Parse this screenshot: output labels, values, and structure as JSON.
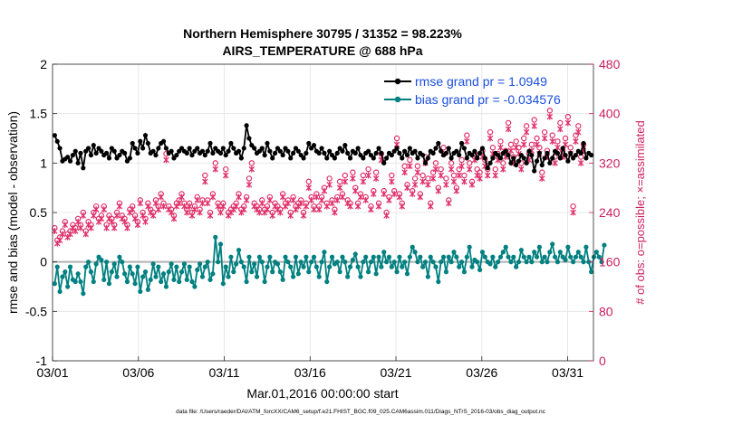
{
  "chart_data": {
    "type": "line",
    "title_line1": "Northern Hemisphere 30795 / 31352 = 98.223%",
    "title_line2": "AIRS_TEMPERATURE @ 688 hPa",
    "xlabel": "Mar.01,2016 00:00:00 start",
    "ylabel_left": "rmse and bias (model - observation)",
    "ylabel_right": "# of obs: o=possible; ×=assimilated",
    "footer": "data file: /Users/raeder/DAI/ATM_forcXX/CAM6_setup/f.e21.FHIST_BGC.f09_025.CAM6assim.011/Diags_NTrS_2016-03/obs_diag_output.nc",
    "xlim": [
      0,
      31.5
    ],
    "ylim_left": [
      -1,
      2
    ],
    "ylim_right": [
      0,
      480
    ],
    "x_ticks": [
      0,
      5,
      10,
      15,
      20,
      25,
      30
    ],
    "x_tick_labels": [
      "03/01",
      "03/06",
      "03/11",
      "03/16",
      "03/21",
      "03/26",
      "03/31"
    ],
    "y_ticks_left": [
      -1,
      -0.5,
      0,
      0.5,
      1,
      1.5,
      2
    ],
    "y_tick_labels_left": [
      "-1",
      "-0.5",
      "0",
      "0.5",
      "1",
      "1.5",
      "2"
    ],
    "y_ticks_right": [
      0,
      80,
      160,
      240,
      320,
      400,
      480
    ],
    "y_tick_labels_right": [
      "0",
      "80",
      "160",
      "240",
      "320",
      "400",
      "480"
    ],
    "legend": [
      {
        "label": "rmse grand pr = 1.0949",
        "color": "#000000"
      },
      {
        "label": "bias grand pr = -0.034576",
        "color": "#007f7f"
      }
    ],
    "colors": {
      "rmse": "#000000",
      "bias": "#008080",
      "obs": "#e0306a",
      "legend_text": "#1a4fe0",
      "right_axis": "#cc1f5e",
      "zero_line": "#b0b0b0"
    },
    "rmse": [
      1.28,
      1.22,
      1.15,
      1.02,
      1.04,
      1.06,
      1.02,
      1.08,
      1.12,
      1.0,
      1.1,
      0.95,
      1.12,
      1.15,
      1.08,
      1.18,
      1.1,
      1.15,
      1.12,
      1.08,
      1.1,
      1.05,
      1.15,
      1.12,
      1.05,
      1.08,
      1.12,
      1.1,
      1.02,
      1.05,
      1.2,
      1.15,
      1.1,
      1.22,
      1.15,
      1.28,
      1.2,
      1.1,
      1.12,
      1.08,
      1.15,
      1.2,
      1.22,
      1.15,
      1.1,
      1.12,
      1.05,
      1.08,
      1.12,
      1.15,
      1.12,
      1.1,
      1.15,
      1.08,
      1.12,
      1.15,
      1.1,
      1.12,
      1.08,
      1.12,
      1.2,
      1.1,
      1.15,
      1.12,
      1.1,
      1.15,
      1.08,
      1.12,
      1.2,
      1.15,
      1.1,
      1.12,
      1.05,
      1.15,
      1.38,
      1.25,
      1.18,
      1.15,
      1.1,
      1.12,
      1.15,
      1.08,
      1.2,
      1.12,
      1.05,
      1.1,
      1.15,
      1.12,
      1.08,
      1.15,
      1.12,
      1.05,
      1.1,
      1.15,
      1.12,
      1.08,
      1.05,
      1.1,
      1.2,
      1.15,
      1.18,
      1.12,
      1.1,
      1.15,
      1.1,
      1.05,
      1.12,
      1.08,
      1.05,
      1.1,
      1.15,
      1.12,
      1.18,
      1.1,
      1.05,
      1.12,
      1.1,
      1.15,
      1.08,
      1.05,
      1.1,
      1.12,
      1.08,
      1.05,
      1.1,
      1.15,
      1.1,
      1.0,
      1.05,
      1.1,
      1.08,
      1.12,
      1.15,
      1.1,
      1.05,
      1.12,
      1.08,
      1.15,
      1.1,
      1.12,
      1.05,
      1.1,
      1.08,
      1.0,
      1.05,
      1.12,
      1.1,
      1.15,
      1.2,
      1.12,
      1.08,
      1.1,
      1.15,
      1.05,
      1.1,
      1.12,
      1.08,
      1.2,
      1.15,
      1.05,
      1.1,
      1.08,
      1.12,
      1.05,
      1.1,
      1.15,
      1.05,
      0.95,
      1.0,
      1.05,
      1.1,
      1.08,
      1.05,
      1.1,
      1.12,
      1.08,
      1.0,
      1.05,
      0.98,
      1.02,
      1.08,
      1.05,
      1.0,
      1.12,
      1.08,
      0.92,
      1.02,
      1.1,
      0.98,
      1.05,
      1.1,
      1.0,
      1.05,
      1.12,
      1.1,
      1.05,
      1.15,
      1.08,
      1.02,
      1.1,
      1.05,
      1.08,
      1.12,
      1.1,
      1.2,
      1.05,
      1.1,
      1.08
    ],
    "bias": [
      -0.22,
      -0.05,
      -0.3,
      -0.15,
      -0.1,
      -0.25,
      -0.05,
      -0.18,
      -0.2,
      -0.12,
      -0.2,
      -0.32,
      -0.05,
      0.0,
      -0.1,
      -0.2,
      -0.02,
      0.05,
      0.02,
      -0.18,
      0.0,
      -0.22,
      -0.1,
      -0.02,
      -0.15,
      0.05,
      0.0,
      -0.12,
      -0.2,
      -0.05,
      -0.12,
      -0.22,
      -0.05,
      -0.3,
      -0.15,
      -0.1,
      -0.28,
      -0.18,
      -0.02,
      -0.15,
      -0.05,
      -0.2,
      -0.12,
      -0.25,
      -0.1,
      -0.02,
      -0.18,
      -0.05,
      -0.2,
      -0.1,
      -0.02,
      -0.18,
      -0.05,
      -0.2,
      -0.25,
      -0.08,
      -0.02,
      -0.15,
      -0.05,
      0.0,
      -0.18,
      -0.12,
      0.25,
      0.0,
      0.18,
      -0.22,
      -0.05,
      -0.15,
      0.05,
      -0.1,
      -0.02,
      0.12,
      0.0,
      -0.05,
      -0.2,
      0.05,
      -0.1,
      -0.02,
      -0.15,
      0.05,
      0.0,
      -0.2,
      -0.05,
      0.05,
      -0.1,
      0.0,
      -0.02,
      -0.1,
      -0.18,
      0.05,
      0.0,
      -0.05,
      -0.15,
      0.05,
      -0.12,
      0.0,
      -0.05,
      0.05,
      -0.1,
      0.0,
      0.05,
      -0.05,
      -0.15,
      0.0,
      0.1,
      -0.2,
      -0.05,
      0.05,
      -0.02,
      0.0,
      -0.1,
      0.05,
      0.0,
      -0.15,
      -0.05,
      0.02,
      0.08,
      -0.05,
      -0.15,
      0.0,
      0.05,
      -0.1,
      0.0,
      0.05,
      -0.12,
      0.05,
      -0.05,
      0.1,
      0.0,
      0.05,
      -0.05,
      0.0,
      -0.1,
      0.05,
      -0.05,
      0.0,
      -0.12,
      0.05,
      0.15,
      0.1,
      0.0,
      0.05,
      -0.05,
      0.0,
      -0.15,
      0.05,
      0.0,
      -0.05,
      -0.2,
      0.0,
      0.05,
      -0.1,
      0.05,
      0.0,
      0.1,
      0.05,
      -0.05,
      0.0,
      -0.1,
      0.05,
      0.15,
      -0.05,
      0.02,
      0.0,
      -0.08,
      0.1,
      0.05,
      0.0,
      -0.02,
      0.05,
      -0.05,
      0.0,
      0.05,
      0.1,
      0.15,
      0.05,
      0.0,
      0.05,
      -0.05,
      0.0,
      0.12,
      0.05,
      0.0,
      0.05,
      0.0,
      0.1,
      0.05,
      0.15,
      0.0,
      0.05,
      0.0,
      0.1,
      0.18,
      0.05,
      0.0,
      0.1,
      0.05,
      0.02,
      0.15,
      0.05,
      0.0,
      0.05,
      0.1,
      0.05,
      0.0,
      0.15,
      0.0,
      -0.1,
      0.05,
      0.1,
      0.05,
      0.0,
      0.17
    ],
    "obs_possible": [
      215,
      195,
      200,
      210,
      225,
      205,
      210,
      220,
      215,
      230,
      220,
      240,
      210,
      225,
      220,
      240,
      250,
      230,
      235,
      250,
      220,
      235,
      230,
      220,
      240,
      255,
      235,
      230,
      220,
      245,
      250,
      235,
      225,
      260,
      240,
      230,
      255,
      245,
      240,
      260,
      250,
      270,
      255,
      335,
      250,
      245,
      235,
      255,
      260,
      270,
      255,
      245,
      255,
      240,
      250,
      265,
      245,
      260,
      300,
      260,
      240,
      270,
      320,
      255,
      245,
      255,
      310,
      240,
      245,
      250,
      255,
      270,
      245,
      250,
      265,
      295,
      320,
      255,
      250,
      245,
      260,
      245,
      250,
      265,
      240,
      255,
      250,
      245,
      270,
      255,
      260,
      240,
      265,
      250,
      255,
      260,
      240,
      255,
      290,
      265,
      250,
      270,
      250,
      265,
      280,
      255,
      295,
      260,
      245,
      265,
      290,
      270,
      300,
      260,
      255,
      305,
      280,
      255,
      270,
      300,
      265,
      310,
      250,
      275,
      305,
      255,
      335,
      275,
      240,
      265,
      300,
      275,
      360,
      270,
      255,
      315,
      285,
      325,
      275,
      295,
      315,
      270,
      300,
      330,
      295,
      255,
      305,
      320,
      280,
      310,
      345,
      295,
      260,
      320,
      300,
      280,
      310,
      325,
      300,
      365,
      320,
      290,
      335,
      310,
      305,
      340,
      325,
      310,
      370,
      345,
      310,
      335,
      355,
      320,
      340,
      385,
      350,
      330,
      355,
      345,
      320,
      360,
      380,
      335,
      350,
      390,
      360,
      345,
      305,
      370,
      340,
      405,
      365,
      330,
      355,
      385,
      340,
      360,
      395,
      345,
      250,
      365,
      380,
      330,
      350
    ],
    "obs_assimilated": [
      210,
      190,
      195,
      205,
      220,
      200,
      205,
      215,
      210,
      225,
      215,
      235,
      205,
      220,
      215,
      235,
      245,
      225,
      230,
      245,
      215,
      230,
      225,
      215,
      235,
      250,
      230,
      225,
      215,
      240,
      245,
      230,
      220,
      255,
      235,
      225,
      250,
      240,
      235,
      255,
      245,
      265,
      250,
      325,
      245,
      240,
      230,
      250,
      255,
      265,
      250,
      240,
      250,
      235,
      245,
      260,
      240,
      255,
      290,
      255,
      235,
      265,
      310,
      250,
      240,
      250,
      300,
      235,
      240,
      245,
      250,
      265,
      240,
      245,
      260,
      285,
      310,
      250,
      245,
      240,
      255,
      240,
      245,
      260,
      235,
      250,
      245,
      240,
      265,
      250,
      255,
      235,
      260,
      245,
      250,
      255,
      235,
      250,
      280,
      260,
      245,
      265,
      245,
      260,
      275,
      250,
      285,
      255,
      240,
      260,
      280,
      265,
      290,
      255,
      250,
      295,
      275,
      250,
      265,
      290,
      260,
      300,
      245,
      270,
      295,
      250,
      325,
      270,
      235,
      260,
      290,
      270,
      350,
      265,
      250,
      305,
      280,
      315,
      270,
      285,
      305,
      265,
      290,
      320,
      285,
      250,
      295,
      310,
      275,
      300,
      335,
      285,
      255,
      310,
      290,
      275,
      300,
      315,
      290,
      355,
      310,
      285,
      325,
      300,
      295,
      330,
      315,
      300,
      360,
      335,
      300,
      325,
      345,
      310,
      330,
      375,
      340,
      320,
      345,
      335,
      310,
      350,
      370,
      325,
      340,
      380,
      350,
      335,
      295,
      360,
      330,
      395,
      355,
      320,
      345,
      375,
      330,
      350,
      385,
      335,
      240,
      355,
      370,
      320,
      340
    ]
  }
}
